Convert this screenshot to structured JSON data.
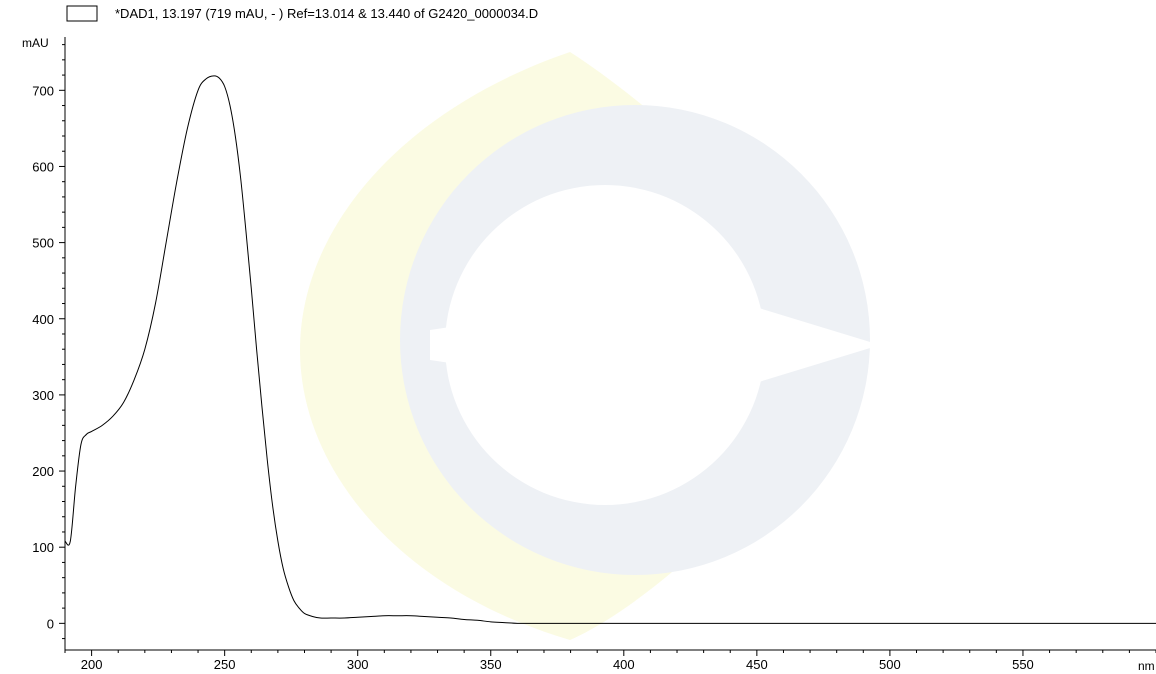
{
  "chart_data": {
    "type": "line",
    "legend": {
      "label": "*DAD1, 13.197 (719 mAU, - ) Ref=13.014 & 13.440 of G2420_0000034.D",
      "swatch_color": "#ffffff"
    },
    "ylabel": "mAU",
    "xlabel": "nm",
    "xlim": [
      190,
      600
    ],
    "ylim": [
      -35,
      770
    ],
    "x_ticks": [
      200,
      250,
      300,
      350,
      400,
      450,
      500,
      550
    ],
    "y_ticks": [
      0,
      100,
      200,
      300,
      400,
      500,
      600,
      700
    ],
    "x_minor_step": 10,
    "y_minor_step": 20,
    "grid": false,
    "line_color": "#000000",
    "watermark_colors": {
      "gray": "#eef1f5",
      "yellow": "#fbfbe3"
    },
    "series": [
      {
        "x": [
          190,
          192,
          194,
          196,
          198,
          200,
          204,
          208,
          212,
          216,
          220,
          224,
          228,
          232,
          236,
          240,
          243,
          246,
          248,
          250,
          252,
          254,
          256,
          258,
          260,
          262,
          264,
          266,
          268,
          270,
          272,
          274,
          276,
          278,
          280,
          283,
          286,
          290,
          295,
          300,
          305,
          310,
          315,
          320,
          325,
          330,
          335,
          340,
          345,
          350,
          355,
          360,
          365,
          370,
          380,
          400,
          450,
          500,
          550,
          600
        ],
        "y": [
          108,
          108,
          180,
          235,
          248,
          252,
          260,
          272,
          290,
          320,
          360,
          420,
          500,
          580,
          650,
          700,
          715,
          719,
          716,
          705,
          680,
          640,
          585,
          515,
          440,
          360,
          285,
          215,
          155,
          108,
          72,
          48,
          30,
          20,
          13,
          9,
          7,
          7,
          7,
          8,
          9,
          10,
          10,
          10,
          9,
          8,
          7,
          5,
          4,
          2,
          1,
          0,
          0,
          0,
          0,
          0,
          0,
          0,
          0,
          0
        ]
      }
    ]
  }
}
